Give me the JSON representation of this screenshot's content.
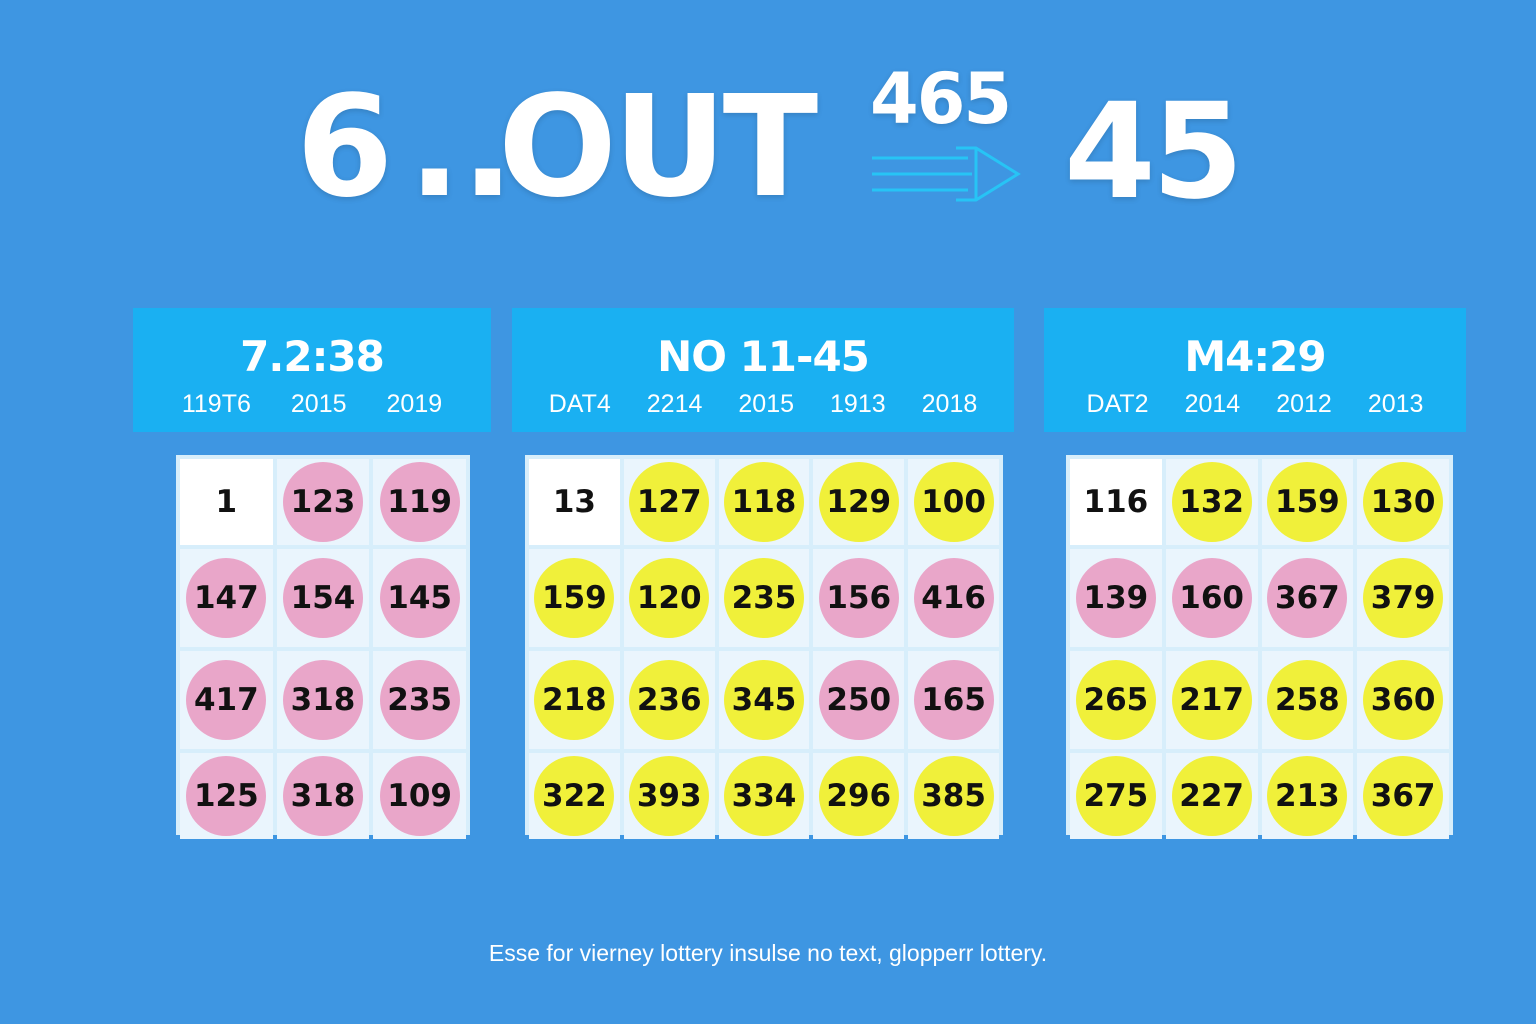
{
  "hero": {
    "left": "6",
    "dots": "..",
    "word": "OUT",
    "small_number": "465",
    "right_number": "45"
  },
  "colors": {
    "background": "#3e96e2",
    "panel_header": "#1ab0f2",
    "ball_pink": "#e9a6c9",
    "ball_yellow": "#f0f03a"
  },
  "panels": [
    {
      "title": "7.2:38",
      "columns": [
        "119T6",
        "2015",
        "2019"
      ],
      "rows": [
        [
          {
            "n": "1",
            "c": "plain"
          },
          {
            "n": "123",
            "c": "pink"
          },
          {
            "n": "119",
            "c": "pink"
          }
        ],
        [
          {
            "n": "147",
            "c": "pink"
          },
          {
            "n": "154",
            "c": "pink"
          },
          {
            "n": "145",
            "c": "pink"
          }
        ],
        [
          {
            "n": "417",
            "c": "pink"
          },
          {
            "n": "318",
            "c": "pink"
          },
          {
            "n": "235",
            "c": "pink"
          }
        ],
        [
          {
            "n": "125",
            "c": "pink"
          },
          {
            "n": "318",
            "c": "pink"
          },
          {
            "n": "109",
            "c": "pink"
          }
        ]
      ]
    },
    {
      "title": "NO 11-45",
      "columns": [
        "DAT4",
        "2214",
        "2015",
        "1913",
        "2018"
      ],
      "rows": [
        [
          {
            "n": "13",
            "c": "plain"
          },
          {
            "n": "127",
            "c": "yellow"
          },
          {
            "n": "118",
            "c": "yellow"
          },
          {
            "n": "129",
            "c": "yellow"
          },
          {
            "n": "100",
            "c": "yellow"
          }
        ],
        [
          {
            "n": "159",
            "c": "yellow"
          },
          {
            "n": "120",
            "c": "yellow"
          },
          {
            "n": "235",
            "c": "yellow"
          },
          {
            "n": "156",
            "c": "pink"
          },
          {
            "n": "416",
            "c": "pink"
          }
        ],
        [
          {
            "n": "218",
            "c": "yellow"
          },
          {
            "n": "236",
            "c": "yellow"
          },
          {
            "n": "345",
            "c": "yellow"
          },
          {
            "n": "250",
            "c": "pink"
          },
          {
            "n": "165",
            "c": "pink"
          }
        ],
        [
          {
            "n": "322",
            "c": "yellow"
          },
          {
            "n": "393",
            "c": "yellow"
          },
          {
            "n": "334",
            "c": "yellow"
          },
          {
            "n": "296",
            "c": "yellow"
          },
          {
            "n": "385",
            "c": "yellow"
          }
        ]
      ]
    },
    {
      "title": "M4:29",
      "columns": [
        "DAT2",
        "2014",
        "2012",
        "2013"
      ],
      "rows": [
        [
          {
            "n": "116",
            "c": "plain"
          },
          {
            "n": "132",
            "c": "yellow"
          },
          {
            "n": "159",
            "c": "yellow"
          },
          {
            "n": "130",
            "c": "yellow"
          }
        ],
        [
          {
            "n": "139",
            "c": "pink"
          },
          {
            "n": "160",
            "c": "pink"
          },
          {
            "n": "367",
            "c": "pink"
          },
          {
            "n": "379",
            "c": "yellow"
          }
        ],
        [
          {
            "n": "265",
            "c": "yellow"
          },
          {
            "n": "217",
            "c": "yellow"
          },
          {
            "n": "258",
            "c": "yellow"
          },
          {
            "n": "360",
            "c": "yellow"
          }
        ],
        [
          {
            "n": "275",
            "c": "yellow"
          },
          {
            "n": "227",
            "c": "yellow"
          },
          {
            "n": "213",
            "c": "yellow"
          },
          {
            "n": "367",
            "c": "yellow"
          }
        ]
      ]
    }
  ],
  "footer": "Esse for vierney lottery insulse no text, glopperr lottery."
}
